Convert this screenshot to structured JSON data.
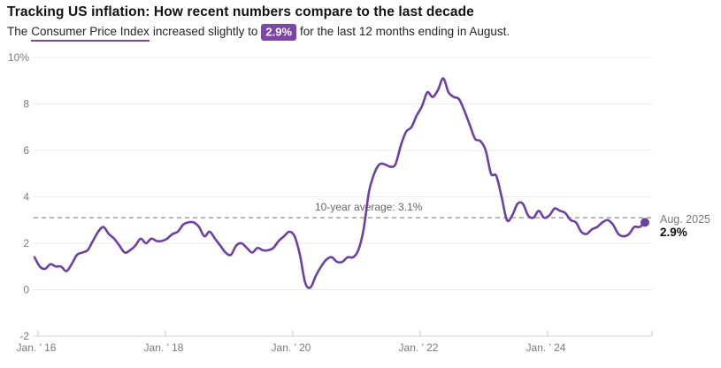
{
  "header": {
    "title": "Tracking US inflation: How recent numbers compare to the last decade",
    "subtitle_prefix": "The",
    "subtitle_link": "Consumer Price Index",
    "subtitle_mid": "increased slightly to",
    "subtitle_badge": "2.9%",
    "subtitle_suffix": "for the last 12 months ending in August."
  },
  "chart_data": {
    "type": "line",
    "title": "Tracking US inflation: How recent numbers compare to the last decade",
    "x_start": "Jan 2016",
    "x_end": "Aug 2025",
    "frequency": "monthly",
    "ylim": [
      -2,
      10
    ],
    "y_ticks": [
      10,
      8,
      6,
      4,
      2,
      0,
      -2
    ],
    "y_tick_labels": [
      "10%",
      "8",
      "6",
      "4",
      "2",
      "0",
      "-2"
    ],
    "x_tick_month_indices": [
      0,
      24,
      48,
      72,
      96
    ],
    "x_tick_labels": [
      "Jan. ’ 16",
      "Jan. ’ 18",
      "Jan. ’ 20",
      "Jan. ’ 22",
      "Jan. ’ 24"
    ],
    "grid": "horizontal",
    "average": 3.1,
    "average_label": "10-year average: 3.1%",
    "end_label": {
      "date": "Aug. 2025",
      "value": "2.9%"
    },
    "colors": {
      "line": "#6e3fa3",
      "accent": "#7d45a8",
      "grid": "#e9e9e9",
      "axis": "#d4d4d4",
      "tick": "#c9c9c9",
      "dashed": "#8f8f8f",
      "label": "#7a7a7a"
    },
    "series": [
      {
        "name": "Consumer Price Index, 12-month percent change",
        "values": [
          1.4,
          1.0,
          0.9,
          1.1,
          1.0,
          1.0,
          0.8,
          1.1,
          1.5,
          1.6,
          1.7,
          2.1,
          2.5,
          2.7,
          2.4,
          2.2,
          1.9,
          1.6,
          1.7,
          1.9,
          2.2,
          2.0,
          2.2,
          2.1,
          2.1,
          2.2,
          2.4,
          2.5,
          2.8,
          2.9,
          2.9,
          2.7,
          2.3,
          2.5,
          2.2,
          1.9,
          1.6,
          1.5,
          1.9,
          2.0,
          1.8,
          1.6,
          1.8,
          1.7,
          1.7,
          1.8,
          2.1,
          2.3,
          2.5,
          2.3,
          1.5,
          0.3,
          0.1,
          0.6,
          1.0,
          1.3,
          1.4,
          1.2,
          1.2,
          1.4,
          1.4,
          1.7,
          2.6,
          4.2,
          5.0,
          5.4,
          5.4,
          5.3,
          5.4,
          6.2,
          6.8,
          7.0,
          7.5,
          7.9,
          8.5,
          8.3,
          8.6,
          9.1,
          8.5,
          8.3,
          8.2,
          7.7,
          7.1,
          6.5,
          6.4,
          6.0,
          5.0,
          4.9,
          4.0,
          3.0,
          3.2,
          3.7,
          3.7,
          3.2,
          3.1,
          3.4,
          3.1,
          3.2,
          3.5,
          3.4,
          3.3,
          3.0,
          2.9,
          2.5,
          2.4,
          2.6,
          2.7,
          2.9,
          3.0,
          2.8,
          2.4,
          2.3,
          2.4,
          2.7,
          2.7,
          2.9
        ]
      }
    ]
  }
}
